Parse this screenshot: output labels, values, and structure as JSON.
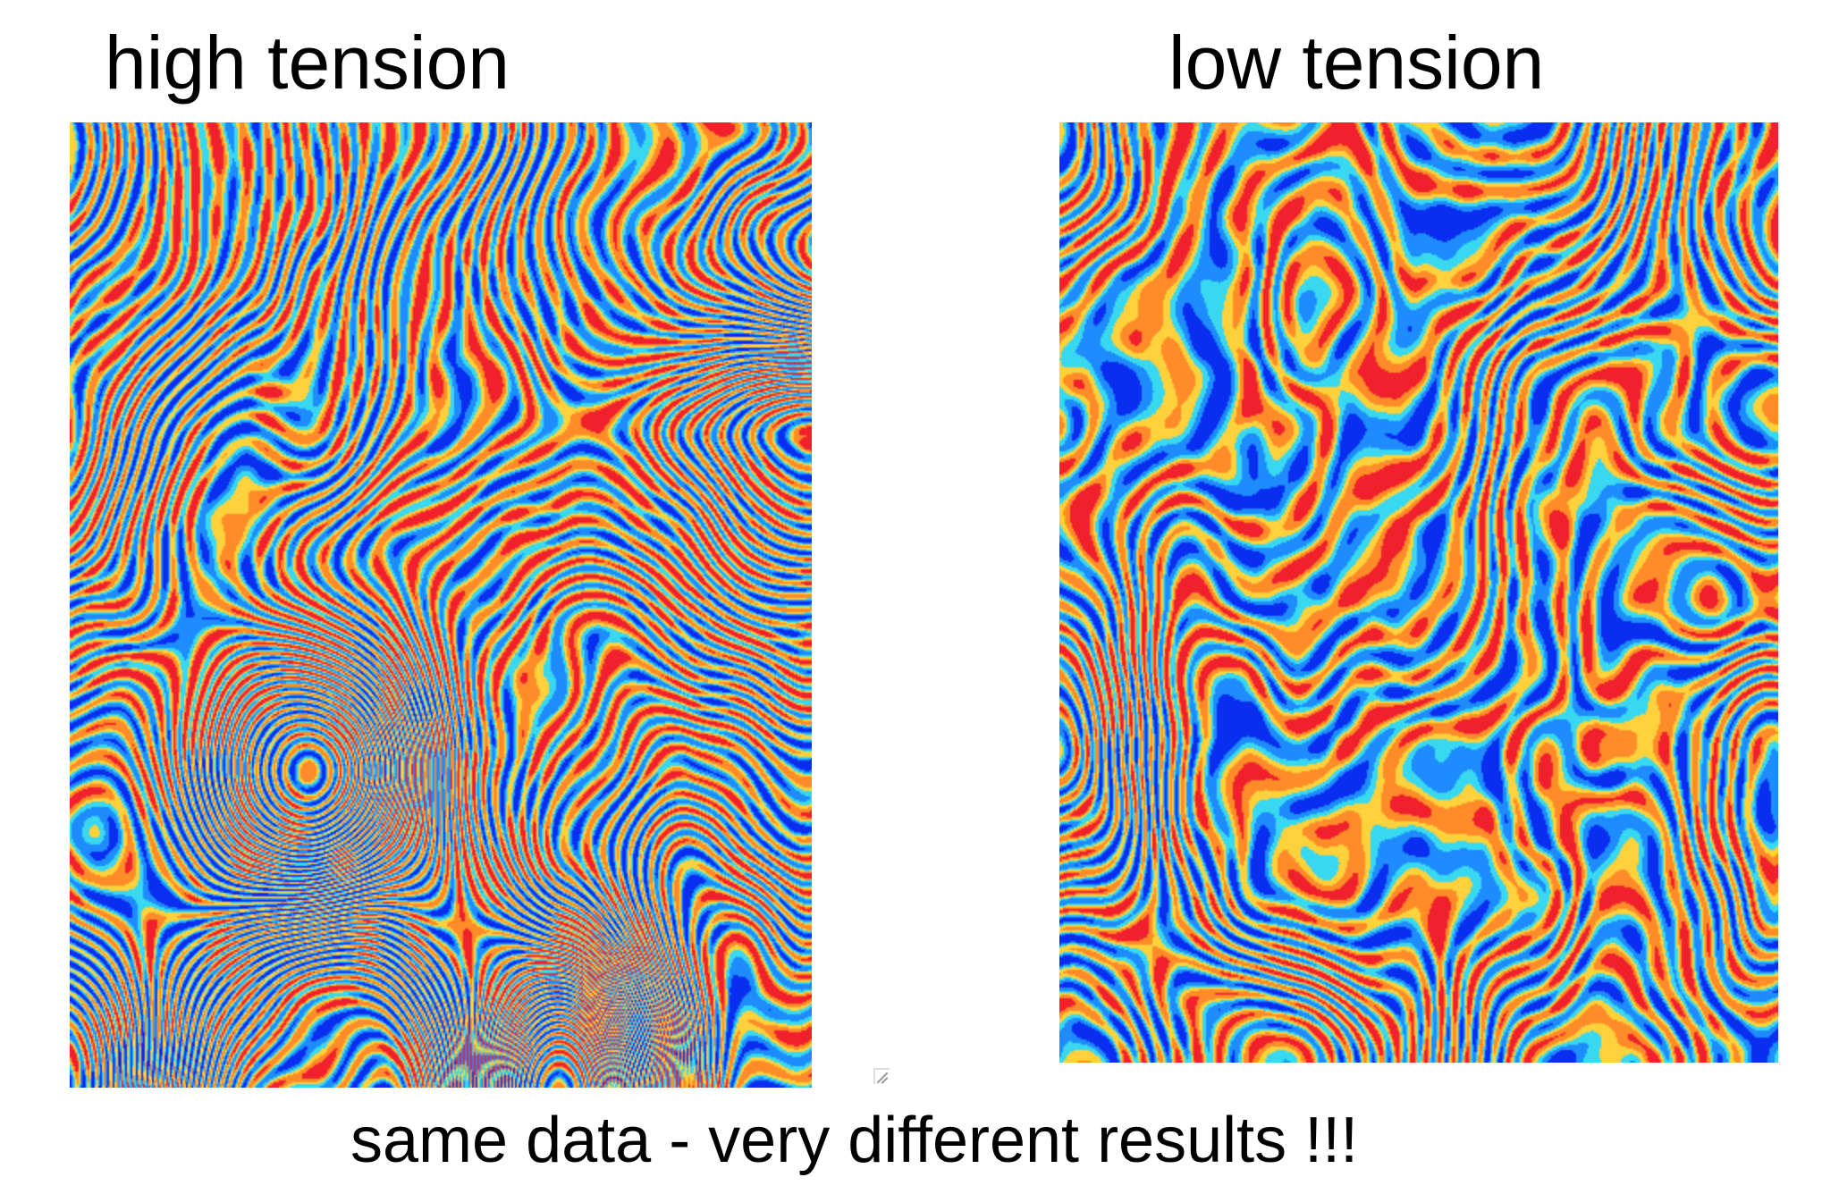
{
  "panels": [
    {
      "title": "high tension",
      "colormap": [
        "#0a2ef0",
        "#1e8cff",
        "#38d8f0",
        "#ffd23c",
        "#ff8c28",
        "#f0202c"
      ]
    },
    {
      "title": "low tension",
      "colormap": [
        "#0a2ef0",
        "#1e8cff",
        "#38d8f0",
        "#ffd23c",
        "#ff8c28",
        "#f0202c"
      ]
    }
  ],
  "caption": "same data - very different results !!!"
}
